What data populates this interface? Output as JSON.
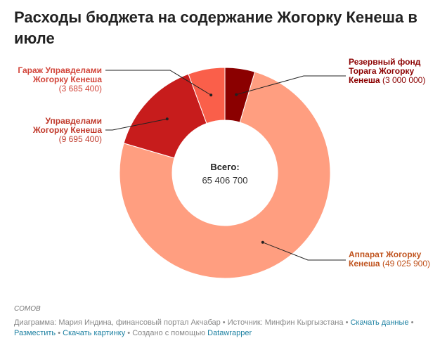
{
  "title": "Расходы бюджета на содержание Жогорку Кенеша в июле",
  "chart_data": {
    "type": "pie",
    "donut": true,
    "center_label": "Всего:",
    "center_value": "65 406 700",
    "slices": [
      {
        "name": "Резервный фонд Торага Жогорку Кенеша",
        "name_lines": [
          "Резервный фонд",
          "Торага Жогорку",
          "Кенеша"
        ],
        "value": 3000000,
        "value_text": "(3 000 000)",
        "color": "#8b0000",
        "label_color": "#8b0000"
      },
      {
        "name": "Аппарат Жогорку Кенеша",
        "name_lines": [
          "Аппарат Жогорку",
          "Кенеша"
        ],
        "value": 49025900,
        "value_text": "(49 025 900)",
        "color": "#ff9e80",
        "label_color": "#c0541f"
      },
      {
        "name": "Управделами Жогорку Кенеша",
        "name_lines": [
          "Управделами",
          "Жогорку Кенеша"
        ],
        "value": 9695400,
        "value_text": "(9 695 400)",
        "color": "#c71c1c",
        "label_color": "#c0392b"
      },
      {
        "name": "Гараж Управделами Жогорку Кенеша",
        "name_lines": [
          "Гараж Управделами",
          "Жогорку Кенеша"
        ],
        "value": 3685400,
        "value_text": "(3 685 400)",
        "color": "#fa5f4a",
        "label_color": "#d2453a"
      }
    ]
  },
  "notes": "СОМОВ",
  "footer": {
    "credit": "Диаграмма: Мария Индина, финансовый портал Акчабар",
    "sep": "•",
    "source": "Источник: Минфин Кыргызстана",
    "download_data": "Скачать данные",
    "embed": "Разместить",
    "download_image": "Скачать картинку",
    "created_with": "Создано с помощью",
    "datawrapper": "Datawrapper"
  }
}
